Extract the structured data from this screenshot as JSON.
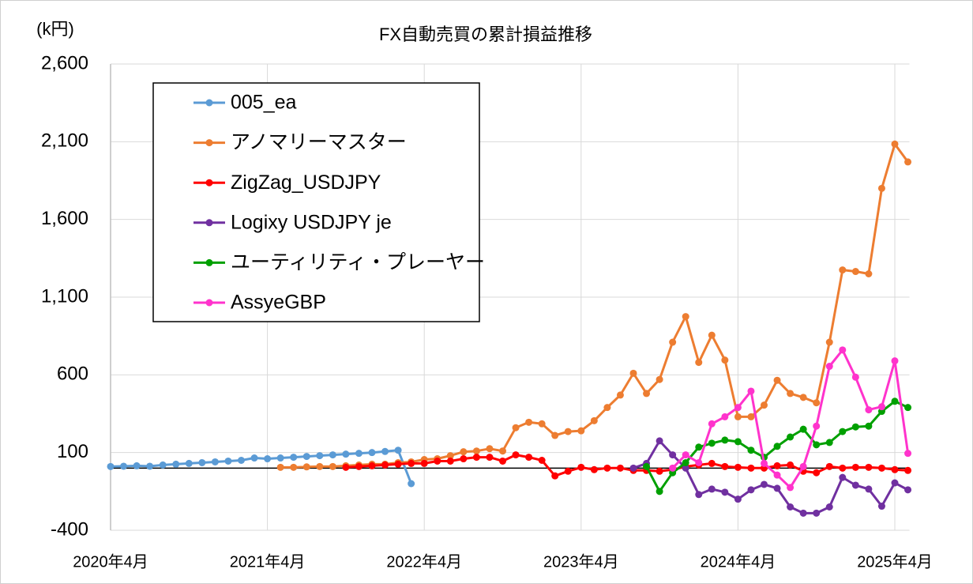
{
  "chart_data": {
    "type": "line",
    "title": "FX自動売買の累計損益推移",
    "y_axis_label": "(k円)",
    "categories": [
      "2020年4月",
      null,
      null,
      null,
      null,
      null,
      null,
      null,
      null,
      null,
      null,
      null,
      "2021年4月",
      null,
      null,
      null,
      null,
      null,
      null,
      null,
      null,
      null,
      null,
      null,
      "2022年4月",
      null,
      null,
      null,
      null,
      null,
      null,
      null,
      null,
      null,
      null,
      null,
      "2023年4月",
      null,
      null,
      null,
      null,
      null,
      null,
      null,
      null,
      null,
      null,
      null,
      "2024年4月",
      null,
      null,
      null,
      null,
      null,
      null,
      null,
      null,
      null,
      null,
      null,
      "2025年4月",
      null
    ],
    "ylim": [
      -400,
      2600
    ],
    "yticks": [
      -400,
      100,
      600,
      {
        "value": 1100,
        "label": "1,100"
      },
      {
        "value": 1600,
        "label": "1,600"
      },
      {
        "value": 2100,
        "label": "2,100"
      },
      {
        "value": 2600,
        "label": "2,600"
      }
    ],
    "grid": true,
    "legend": "upper left",
    "series": [
      {
        "name": "005_ea",
        "color": "#5b9bd5",
        "values": [
          10,
          12,
          15,
          12,
          20,
          25,
          30,
          35,
          40,
          45,
          50,
          65,
          60,
          65,
          70,
          75,
          80,
          85,
          90,
          95,
          100,
          107,
          115,
          -100,
          null,
          null,
          null,
          null,
          null,
          null,
          null,
          null,
          null,
          null,
          null,
          null,
          null,
          null,
          null,
          null,
          null,
          null,
          null,
          null,
          null,
          null,
          null,
          null,
          null,
          null,
          null,
          null,
          null,
          null,
          null,
          null,
          null,
          null,
          null,
          null,
          null,
          null
        ]
      },
      {
        "name": "アノマリーマスター",
        "color": "#ed7d31",
        "values": [
          null,
          null,
          null,
          null,
          null,
          null,
          null,
          null,
          null,
          null,
          null,
          null,
          null,
          5,
          5,
          8,
          10,
          10,
          15,
          20,
          25,
          25,
          35,
          40,
          55,
          60,
          80,
          105,
          110,
          125,
          110,
          260,
          295,
          285,
          210,
          235,
          240,
          305,
          390,
          470,
          610,
          480,
          570,
          810,
          975,
          680,
          855,
          695,
          330,
          330,
          405,
          565,
          480,
          455,
          420,
          810,
          1275,
          1265,
          1250,
          1800,
          2085,
          1970
        ]
      },
      {
        "name": "ZigZag_USDJPY",
        "color": "#ff0000",
        "values": [
          null,
          null,
          null,
          null,
          null,
          null,
          null,
          null,
          null,
          null,
          null,
          null,
          null,
          null,
          null,
          null,
          null,
          null,
          5,
          10,
          15,
          20,
          25,
          30,
          30,
          45,
          45,
          60,
          70,
          70,
          45,
          85,
          70,
          50,
          -50,
          -20,
          5,
          -10,
          0,
          0,
          -15,
          -15,
          -20,
          -10,
          10,
          20,
          30,
          10,
          5,
          0,
          0,
          15,
          20,
          -20,
          -30,
          10,
          0,
          5,
          5,
          0,
          -10,
          -15
        ]
      },
      {
        "name": "Logixy USDJPY je",
        "color": "#7030a0",
        "values": [
          null,
          null,
          null,
          null,
          null,
          null,
          null,
          null,
          null,
          null,
          null,
          null,
          null,
          null,
          null,
          null,
          null,
          null,
          null,
          null,
          null,
          null,
          null,
          null,
          null,
          null,
          null,
          null,
          null,
          null,
          null,
          null,
          null,
          null,
          null,
          null,
          null,
          null,
          null,
          null,
          0,
          30,
          175,
          85,
          0,
          -170,
          -135,
          -155,
          -200,
          -140,
          -105,
          -130,
          -250,
          -290,
          -290,
          -250,
          -60,
          -110,
          -135,
          -245,
          -95,
          -140
        ]
      },
      {
        "name": "ユーティリティ・プレーヤー",
        "color": "#00a000",
        "values": [
          null,
          null,
          null,
          null,
          null,
          null,
          null,
          null,
          null,
          null,
          null,
          null,
          null,
          null,
          null,
          null,
          null,
          null,
          null,
          null,
          null,
          null,
          null,
          null,
          null,
          null,
          null,
          null,
          null,
          null,
          null,
          null,
          null,
          null,
          null,
          null,
          null,
          null,
          null,
          null,
          null,
          10,
          -150,
          -30,
          35,
          135,
          160,
          180,
          170,
          115,
          70,
          140,
          200,
          250,
          150,
          165,
          235,
          265,
          270,
          365,
          430,
          390
        ]
      },
      {
        "name": "AssyeGBP",
        "color": "#ff33cc",
        "values": [
          null,
          null,
          null,
          null,
          null,
          null,
          null,
          null,
          null,
          null,
          null,
          null,
          null,
          null,
          null,
          null,
          null,
          null,
          null,
          null,
          null,
          null,
          null,
          null,
          null,
          null,
          null,
          null,
          null,
          null,
          null,
          null,
          null,
          null,
          null,
          null,
          null,
          null,
          null,
          null,
          null,
          null,
          null,
          0,
          85,
          35,
          285,
          330,
          390,
          495,
          30,
          -45,
          -125,
          10,
          270,
          655,
          760,
          585,
          375,
          395,
          690,
          95
        ]
      }
    ]
  }
}
